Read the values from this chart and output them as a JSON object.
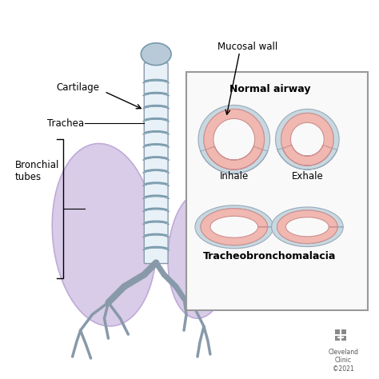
{
  "bg_color": "#ffffff",
  "lung_color": "#d8cce8",
  "lung_edge_color": "#c0aad8",
  "trachea_outer_color": "#b0c8d8",
  "trachea_inner_color": "#e8f0f8",
  "ring_outer_color": "#b8ccd8",
  "ring_pink_color": "#f0b8b0",
  "ring_blue_color": "#c8d8e0",
  "box_color": "#f5f5f5",
  "box_edge_color": "#888888",
  "label_cartilage": "Cartilage",
  "label_trachea": "Trachea",
  "label_bronchial": "Bronchial\ntubes",
  "label_mucosal": "Mucosal wall",
  "label_normal": "Normal airway",
  "label_inhale": "Inhale",
  "label_exhale": "Exhale",
  "label_tracheobronchomalacia": "Tracheobronchomalacia",
  "label_cleveland": "Cleveland\nClinic\n©2021",
  "title_fontsize": 9,
  "label_fontsize": 8.5,
  "bold_fontsize": 9
}
